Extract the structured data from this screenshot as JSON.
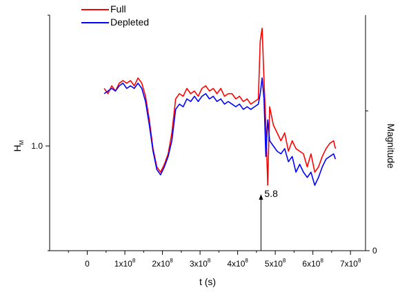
{
  "chart_data": {
    "type": "line",
    "title": "",
    "xlabel": "t (s)",
    "ylabel": "H",
    "ylabel_subscript": "M",
    "ylabel_right": "Magnitude",
    "xlim": [
      -100000000.0,
      740000000.0
    ],
    "ylim": [
      0.6,
      1.5
    ],
    "x_ticks": [
      {
        "value": 0,
        "label": "0"
      },
      {
        "value": 100000000.0,
        "mantissa": "1x10",
        "exp": "8"
      },
      {
        "value": 200000000.0,
        "mantissa": "2x10",
        "exp": "8"
      },
      {
        "value": 300000000.0,
        "mantissa": "3x10",
        "exp": "8"
      },
      {
        "value": 400000000.0,
        "mantissa": "4x10",
        "exp": "8"
      },
      {
        "value": 500000000.0,
        "mantissa": "5x10",
        "exp": "8"
      },
      {
        "value": 600000000.0,
        "mantissa": "6x10",
        "exp": "8"
      },
      {
        "value": 700000000.0,
        "mantissa": "7x10",
        "exp": "8"
      }
    ],
    "y_ticks": [
      {
        "value": 1.0,
        "label": "1.0"
      }
    ],
    "y_right_ticks": [
      {
        "value": 0,
        "label": "0"
      }
    ],
    "legend_position": "top-left",
    "annotation": {
      "label": "5.8",
      "x": 462000000.0
    },
    "series": [
      {
        "name": "Full",
        "color": "#ff0000",
        "x": [
          45000000.0,
          55000000.0,
          65000000.0,
          75000000.0,
          85000000.0,
          95000000.0,
          105000000.0,
          115000000.0,
          125000000.0,
          135000000.0,
          145000000.0,
          155000000.0,
          165000000.0,
          175000000.0,
          185000000.0,
          195000000.0,
          205000000.0,
          215000000.0,
          225000000.0,
          235000000.0,
          245000000.0,
          255000000.0,
          265000000.0,
          275000000.0,
          285000000.0,
          295000000.0,
          305000000.0,
          315000000.0,
          325000000.0,
          335000000.0,
          345000000.0,
          355000000.0,
          365000000.0,
          375000000.0,
          385000000.0,
          395000000.0,
          405000000.0,
          415000000.0,
          425000000.0,
          435000000.0,
          445000000.0,
          455000000.0,
          460000000.0,
          465000000.0,
          470000000.0,
          475000000.0,
          480000000.0,
          485000000.0,
          495000000.0,
          505000000.0,
          515000000.0,
          525000000.0,
          535000000.0,
          545000000.0,
          555000000.0,
          565000000.0,
          575000000.0,
          585000000.0,
          595000000.0,
          605000000.0,
          615000000.0,
          625000000.0,
          635000000.0,
          645000000.0,
          655000000.0,
          660000000.0
        ],
        "y": [
          1.22,
          1.2,
          1.23,
          1.21,
          1.24,
          1.25,
          1.24,
          1.25,
          1.23,
          1.26,
          1.24,
          1.19,
          1.1,
          0.99,
          0.92,
          0.9,
          0.93,
          0.97,
          1.05,
          1.18,
          1.2,
          1.19,
          1.22,
          1.2,
          1.21,
          1.19,
          1.22,
          1.23,
          1.21,
          1.22,
          1.2,
          1.22,
          1.19,
          1.2,
          1.2,
          1.18,
          1.19,
          1.17,
          1.18,
          1.16,
          1.17,
          1.18,
          1.4,
          1.45,
          1.25,
          1.08,
          0.85,
          1.15,
          1.08,
          1.05,
          1.02,
          1.05,
          0.98,
          1.02,
          0.99,
          0.98,
          0.97,
          0.92,
          0.97,
          0.9,
          0.92,
          0.96,
          0.99,
          1.01,
          1.02,
          0.99
        ]
      },
      {
        "name": "Depleted",
        "color": "#0000ff",
        "x": [
          45000000.0,
          55000000.0,
          65000000.0,
          75000000.0,
          85000000.0,
          95000000.0,
          105000000.0,
          115000000.0,
          125000000.0,
          135000000.0,
          145000000.0,
          155000000.0,
          165000000.0,
          175000000.0,
          185000000.0,
          195000000.0,
          205000000.0,
          215000000.0,
          225000000.0,
          235000000.0,
          245000000.0,
          255000000.0,
          265000000.0,
          275000000.0,
          285000000.0,
          295000000.0,
          305000000.0,
          315000000.0,
          325000000.0,
          335000000.0,
          345000000.0,
          355000000.0,
          365000000.0,
          375000000.0,
          385000000.0,
          395000000.0,
          405000000.0,
          415000000.0,
          425000000.0,
          435000000.0,
          445000000.0,
          455000000.0,
          460000000.0,
          465000000.0,
          470000000.0,
          475000000.0,
          480000000.0,
          485000000.0,
          495000000.0,
          505000000.0,
          515000000.0,
          525000000.0,
          535000000.0,
          545000000.0,
          555000000.0,
          565000000.0,
          575000000.0,
          585000000.0,
          595000000.0,
          605000000.0,
          615000000.0,
          625000000.0,
          635000000.0,
          645000000.0,
          655000000.0,
          660000000.0
        ],
        "y": [
          1.2,
          1.21,
          1.22,
          1.21,
          1.23,
          1.24,
          1.22,
          1.23,
          1.22,
          1.24,
          1.22,
          1.17,
          1.08,
          0.98,
          0.91,
          0.89,
          0.92,
          0.96,
          1.02,
          1.14,
          1.16,
          1.15,
          1.18,
          1.17,
          1.19,
          1.17,
          1.19,
          1.2,
          1.18,
          1.19,
          1.17,
          1.18,
          1.16,
          1.17,
          1.16,
          1.15,
          1.16,
          1.14,
          1.15,
          1.14,
          1.15,
          1.16,
          1.2,
          1.26,
          1.18,
          0.96,
          1.1,
          1.02,
          1.0,
          0.98,
          0.97,
          0.99,
          0.94,
          0.96,
          0.9,
          0.93,
          0.9,
          0.88,
          0.9,
          0.85,
          0.88,
          0.92,
          0.95,
          0.96,
          0.97,
          0.95
        ]
      }
    ]
  }
}
